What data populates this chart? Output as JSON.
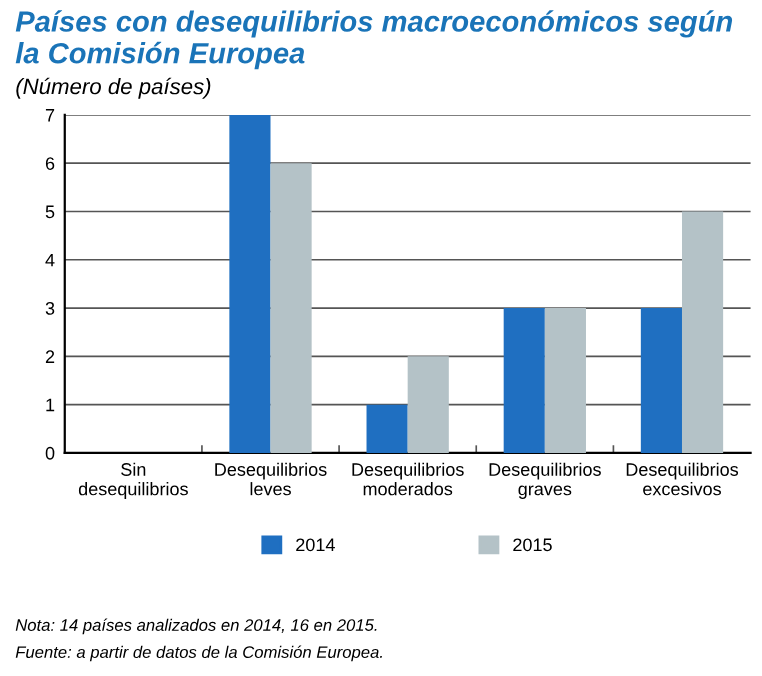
{
  "chart_data": {
    "type": "bar",
    "title": "Países con desequilibrios macroeconómicos según la Comisión Europea",
    "subtitle": "(Número de países)",
    "categories": [
      "Sin\ndesequilibrios",
      "Desequilibrios\nleves",
      "Desequilibrios\nmoderados",
      "Desequilibrios\ngraves",
      "Desequilibrios\nexcesivos"
    ],
    "series": [
      {
        "name": "2014",
        "color": "#1f6fc1",
        "values": [
          0,
          7,
          1,
          3,
          3
        ]
      },
      {
        "name": "2015",
        "color": "#b4c2c7",
        "values": [
          0,
          6,
          2,
          3,
          5
        ]
      }
    ],
    "ylim": [
      0,
      7
    ],
    "yticks": [
      0,
      1,
      2,
      3,
      4,
      5,
      6,
      7
    ],
    "grid": "y",
    "legend": "bottom",
    "annotations": [
      "Nota: 14 países analizados en 2014, 16 en 2015.",
      "Fuente: a partir de datos de la Comisión Europea."
    ]
  }
}
